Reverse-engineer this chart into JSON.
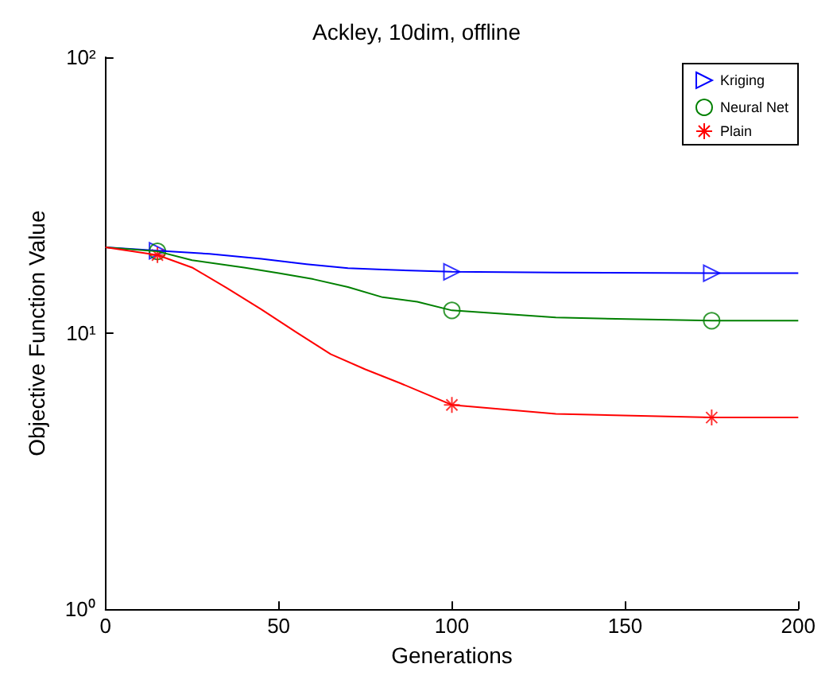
{
  "chart_data": {
    "type": "line",
    "title": "Ackley, 10dim, offline",
    "xlabel": "Generations",
    "ylabel": "Objective Function Value",
    "log": "y",
    "xlim": [
      0,
      200
    ],
    "xticks": [
      0,
      50,
      100,
      150,
      200
    ],
    "ylim": [
      1,
      100
    ],
    "yticks": [
      {
        "value": 1,
        "label": "10⁰"
      },
      {
        "value": 10,
        "label": "10¹"
      },
      {
        "value": 100,
        "label": "10²"
      }
    ],
    "grid": false,
    "legend": "top right",
    "series": [
      {
        "name": "Kriging",
        "color": "#0000ff",
        "x": [
          0,
          15,
          30,
          45,
          58,
          70,
          80,
          100,
          130,
          175,
          200
        ],
        "values": [
          20.5,
          19.9,
          19.4,
          18.6,
          17.8,
          17.2,
          17.0,
          16.7,
          16.6,
          16.5,
          16.5
        ]
      },
      {
        "name": "Neural Net",
        "color": "#008000",
        "x": [
          0,
          15,
          25,
          40,
          50,
          60,
          70,
          80,
          90,
          100,
          130,
          175,
          200
        ],
        "values": [
          20.5,
          19.8,
          18.4,
          17.3,
          16.5,
          15.7,
          14.7,
          13.5,
          13.0,
          12.1,
          11.4,
          11.1,
          11.1
        ]
      },
      {
        "name": "Plain",
        "color": "#ff0000",
        "x": [
          0,
          15,
          25,
          35,
          45,
          55,
          65,
          75,
          85,
          100,
          130,
          175,
          200
        ],
        "values": [
          20.5,
          19.2,
          17.3,
          14.6,
          12.2,
          10.1,
          8.4,
          7.4,
          6.6,
          5.5,
          5.1,
          4.95,
          4.95
        ]
      },
      {
        "type": "scatter",
        "color": "#0000ff",
        "marker": "triangle",
        "x": [
          15,
          100,
          175
        ],
        "values": [
          19.9,
          16.7,
          16.5
        ]
      },
      {
        "type": "scatter",
        "color": "#008000",
        "marker": "circle",
        "x": [
          15,
          100,
          175
        ],
        "values": [
          19.8,
          12.1,
          11.1
        ]
      },
      {
        "type": "scatter",
        "color": "#ff0000",
        "marker": "cross",
        "x": [
          15,
          100,
          175
        ],
        "values": [
          19.2,
          5.5,
          4.95
        ]
      }
    ]
  }
}
